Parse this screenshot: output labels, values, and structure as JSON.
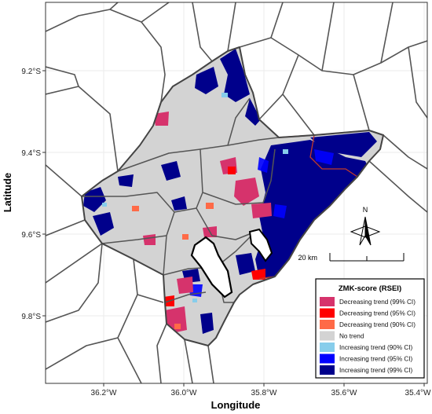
{
  "axes": {
    "xlabel": "Longitude",
    "ylabel": "Latitude",
    "x_ticks": [
      "36.2°W",
      "36.0°W",
      "35.8°W",
      "35.6°W",
      "35.4°W"
    ],
    "y_ticks": [
      "9.2°S",
      "9.4°S",
      "9.6°S",
      "9.8°S"
    ]
  },
  "north_arrow": {
    "label": "N"
  },
  "scale_bar": {
    "label": "20 km"
  },
  "legend": {
    "title": "ZMK-score (RSEI)",
    "position": "bottom-right",
    "items": [
      {
        "label": "Decreasing trend (99% CI)",
        "color": "#d6336c"
      },
      {
        "label": "Decreasing trend (95% CI)",
        "color": "#ff0000"
      },
      {
        "label": "Decreasing trend (90% CI)",
        "color": "#ff6a47"
      },
      {
        "label": "No trend",
        "color": "#d3d3d3"
      },
      {
        "label": "Increasing trend (90% CI)",
        "color": "#87cdeb"
      },
      {
        "label": "Increasing trend (95% CI)",
        "color": "#0000ff"
      },
      {
        "label": "Increasing trend (99% CI)",
        "color": "#00008b"
      }
    ]
  },
  "colors": {
    "boundary": "#555555",
    "grid": "#ebebeb",
    "coast_boundary": "#c0392b"
  }
}
